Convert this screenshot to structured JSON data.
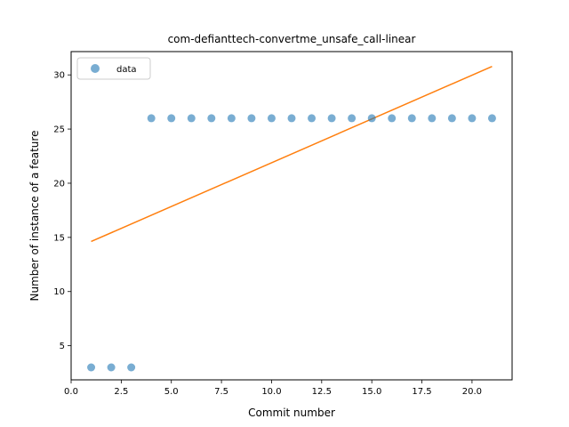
{
  "chart_data": {
    "type": "scatter",
    "title": "com-defianttech-convertme_unsafe_call-linear",
    "xlabel": "Commit number",
    "ylabel": "Number of instance of a feature",
    "xlim": [
      0.0,
      22.0
    ],
    "ylim": [
      1.85,
      32.15
    ],
    "xticks": [
      0.0,
      2.5,
      5.0,
      7.5,
      10.0,
      12.5,
      15.0,
      17.5,
      20.0
    ],
    "xtick_labels": [
      "0.0",
      "2.5",
      "5.0",
      "7.5",
      "10.0",
      "12.5",
      "15.0",
      "17.5",
      "20.0"
    ],
    "yticks": [
      5,
      10,
      15,
      20,
      25,
      30
    ],
    "ytick_labels": [
      "5",
      "10",
      "15",
      "20",
      "25",
      "30"
    ],
    "grid": false,
    "legend": {
      "position": "top-left",
      "entries": [
        "data"
      ]
    },
    "series": [
      {
        "name": "data",
        "type": "scatter",
        "color": "#1f77b4",
        "x": [
          1,
          2,
          3,
          4,
          5,
          6,
          7,
          8,
          9,
          10,
          11,
          12,
          13,
          14,
          15,
          16,
          17,
          18,
          19,
          20,
          21
        ],
        "y": [
          3,
          3,
          3,
          26,
          26,
          26,
          26,
          26,
          26,
          26,
          26,
          26,
          26,
          26,
          26,
          26,
          26,
          26,
          26,
          26,
          26
        ]
      },
      {
        "type": "line",
        "color": "#ff7f0e",
        "x": [
          1,
          21
        ],
        "y": [
          14.62,
          30.78
        ]
      }
    ]
  }
}
